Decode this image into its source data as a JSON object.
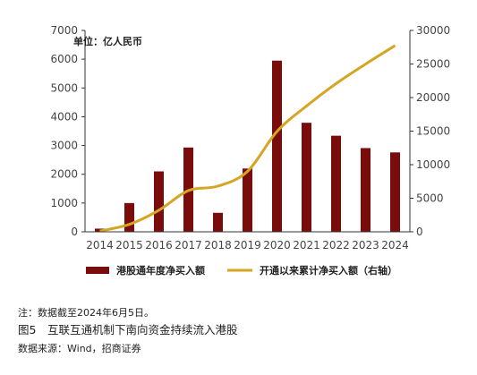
{
  "chart_data": {
    "type": "bar",
    "unit_label": "单位：亿人民币",
    "categories": [
      "2014",
      "2015",
      "2016",
      "2017",
      "2018",
      "2019",
      "2020",
      "2021",
      "2022",
      "2023",
      "2024"
    ],
    "series": [
      {
        "name": "港股通年度净买入额",
        "type": "bar",
        "axis": "left",
        "values": [
          110,
          1000,
          2100,
          2930,
          660,
          2200,
          5950,
          3790,
          3340,
          2910,
          2760
        ]
      },
      {
        "name": "开通以来累计净买入额（右轴）",
        "type": "line",
        "axis": "right",
        "values": [
          110,
          1110,
          3210,
          6140,
          6800,
          9000,
          14950,
          18740,
          22080,
          24990,
          27750
        ]
      }
    ],
    "y_left": {
      "min": 0,
      "max": 7000,
      "ticks": [
        0,
        1000,
        2000,
        3000,
        4000,
        5000,
        6000,
        7000
      ]
    },
    "y_right": {
      "min": 0,
      "max": 30000,
      "ticks": [
        0,
        5000,
        10000,
        15000,
        20000,
        25000,
        30000
      ]
    },
    "legend_position": "bottom",
    "colors": {
      "bar": "#7b0c0c",
      "line": "#d4a623",
      "axis": "#333333"
    }
  },
  "text": {
    "note": "注：数据截至2024年6月5日。",
    "caption": "图5　互联互通机制下南向资金持续流入港股",
    "source": "数据来源：Wind，招商证券"
  }
}
